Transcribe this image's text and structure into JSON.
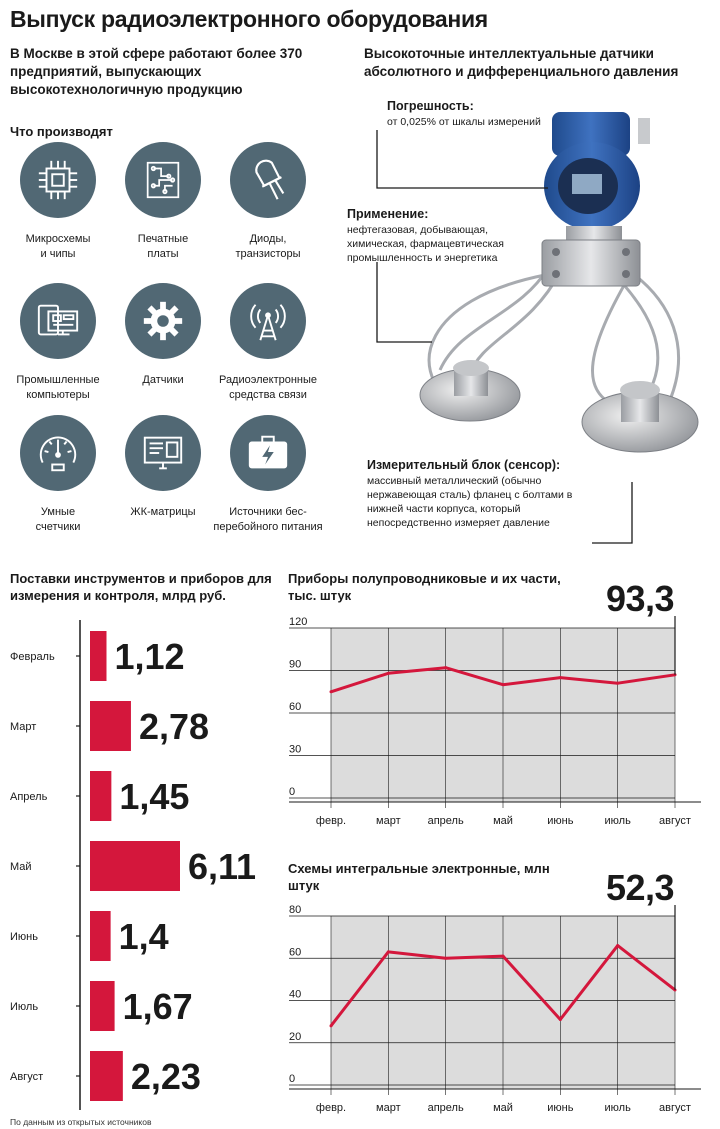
{
  "title": "Выпуск радиоэлектронного оборудования",
  "intro": "В Москве в этой сфере работают более 370 предприятий, выпускающих высокотехнологичную продукцию",
  "products_heading": "Что производят",
  "products": [
    {
      "label": "Микросхемы\nи чипы",
      "icon": "microchip-icon"
    },
    {
      "label": "Печатные\nплаты",
      "icon": "circuit-board-icon"
    },
    {
      "label": "Диоды,\nтранзисторы",
      "icon": "diode-icon"
    },
    {
      "label": "Промышленные\nкомпьютеры",
      "icon": "computer-icon"
    },
    {
      "label": "Датчики",
      "icon": "gear-icon"
    },
    {
      "label": "Радиоэлектронные\nсредства связи",
      "icon": "radio-tower-icon"
    },
    {
      "label": "Умные\nсчетчики",
      "icon": "gauge-icon"
    },
    {
      "label": "ЖК-матрицы",
      "icon": "lcd-monitor-icon"
    },
    {
      "label": "Источники бес-\nперебойного питания",
      "icon": "battery-icon"
    }
  ],
  "sensor": {
    "heading": "Высокоточные интеллектуальные датчики абсолютного и дифференциального давления",
    "accuracy_title": "Погрешность:",
    "accuracy_text": "от 0,025% от шкалы измерений",
    "application_title": "Применение:",
    "application_text": "нефтегазовая, добывающая, химическая, фармацевтическая промышленность и энергетика",
    "block_title": "Измерительный блок (сенсор):",
    "block_text": "массивный металлический (обычно нержавеющая сталь) фланец с болтами в нижней части корпуса, который непосредственно измеряет давление"
  },
  "colors": {
    "accent": "#d4173c",
    "icon_bg": "#516874",
    "area": "#dcdcdc",
    "sensor_blue": "#2d5aa3"
  },
  "footnote": "По данным из открытых источников",
  "chart_data": [
    {
      "type": "bar",
      "title": "Поставки инструментов и приборов для измерения и контроля, млрд руб.",
      "categories": [
        "Февраль",
        "Март",
        "Апрель",
        "Май",
        "Июнь",
        "Июль",
        "Август"
      ],
      "values": [
        1.12,
        2.78,
        1.45,
        6.11,
        1.4,
        1.67,
        2.23
      ],
      "value_labels": [
        "1,12",
        "2,78",
        "1,45",
        "6,11",
        "1,4",
        "1,67",
        "2,23"
      ]
    },
    {
      "type": "area",
      "title": "Приборы полупроводниковые и их части, тыс. штук",
      "highlight_value": "93,3",
      "categories": [
        "февр.",
        "март",
        "апрель",
        "май",
        "июнь",
        "июль",
        "август"
      ],
      "values": [
        75,
        88,
        92,
        80,
        85,
        81,
        87
      ],
      "ylim": [
        0,
        120
      ],
      "yticks": [
        "120",
        "90",
        "60",
        "30",
        "0"
      ]
    },
    {
      "type": "area",
      "title": "Схемы интегральные электронные, млн штук",
      "highlight_value": "52,3",
      "categories": [
        "февр.",
        "март",
        "апрель",
        "май",
        "июнь",
        "июль",
        "август"
      ],
      "values": [
        28,
        63,
        60,
        61,
        31,
        66,
        45
      ],
      "ylim": [
        0,
        80
      ],
      "yticks": [
        "80",
        "60",
        "40",
        "20",
        "0"
      ]
    }
  ]
}
